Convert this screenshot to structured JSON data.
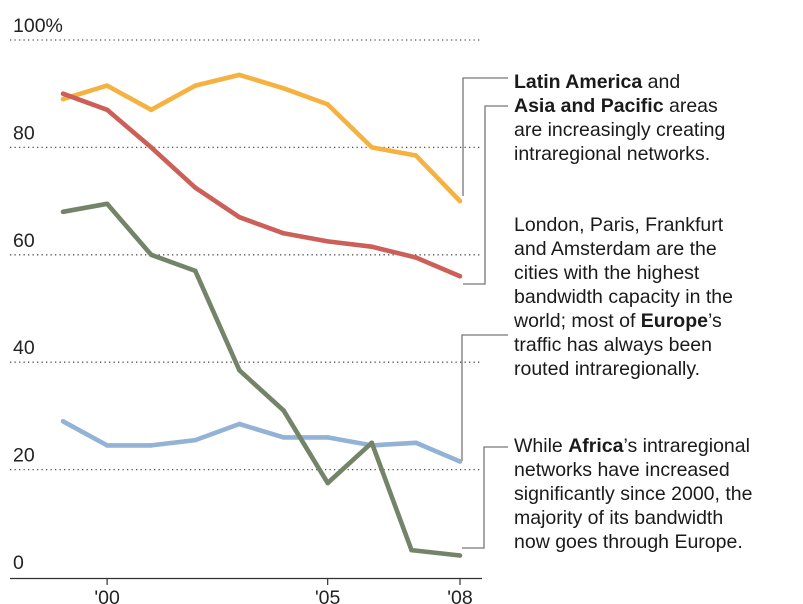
{
  "chart_data": {
    "type": "line",
    "x": [
      1999,
      2000,
      2001,
      2002,
      2003,
      2004,
      2005,
      2006,
      2007,
      2008
    ],
    "xticks": [
      {
        "x": 2000,
        "label": "'00"
      },
      {
        "x": 2005,
        "label": "'05"
      },
      {
        "x": 2008,
        "label": "'08"
      }
    ],
    "ylim": [
      0,
      100
    ],
    "yticks": [
      {
        "y": 100,
        "label": "100%"
      },
      {
        "y": 80,
        "label": "80"
      },
      {
        "y": 60,
        "label": "60"
      },
      {
        "y": 40,
        "label": "40"
      },
      {
        "y": 20,
        "label": "20"
      },
      {
        "y": 0,
        "label": "0"
      }
    ],
    "grid": true,
    "series": [
      {
        "name": "Latin America",
        "color": "#f5b240",
        "x": [
          1999,
          2000,
          2001,
          2002,
          2003,
          2004,
          2005,
          2006,
          2007,
          2008
        ],
        "values": [
          89,
          91.5,
          87,
          91.5,
          93.5,
          91,
          88,
          80,
          78.5,
          70
        ]
      },
      {
        "name": "Asia and Pacific",
        "color": "#cc6058",
        "x": [
          1999,
          2000,
          2001,
          2002,
          2003,
          2004,
          2005,
          2006,
          2007,
          2008
        ],
        "values": [
          90,
          87,
          80,
          72.5,
          67,
          64,
          62.5,
          61.5,
          59.5,
          56
        ]
      },
      {
        "name": "Europe",
        "color": "#93b3d6",
        "x": [
          1999,
          2000,
          2001,
          2002,
          2003,
          2004,
          2005,
          2006,
          2007,
          2008
        ],
        "values": [
          29,
          24.5,
          24.5,
          25.5,
          28.5,
          26,
          26,
          24.5,
          25,
          21.5
        ]
      },
      {
        "name": "Africa",
        "color": "#748468",
        "x": [
          1999,
          2000,
          2001,
          2002,
          2003,
          2004,
          2005,
          2006,
          2006.9,
          2008
        ],
        "values": [
          68,
          69.5,
          60,
          57,
          38.5,
          31,
          17.5,
          25,
          5,
          4
        ]
      }
    ]
  },
  "annotations": [
    {
      "id": "annot-1",
      "series": "Latin America",
      "series2": "Asia and Pacific",
      "parts": [
        {
          "b": "Latin America"
        },
        {
          "t": " and "
        },
        {
          "br": true
        },
        {
          "b": "Asia and Pacific"
        },
        {
          "t": " areas"
        },
        {
          "br": true
        },
        {
          "t": "are increasingly creating"
        },
        {
          "br": true
        },
        {
          "t": "intraregional networks."
        }
      ]
    },
    {
      "id": "annot-2",
      "series": "Europe",
      "parts": [
        {
          "t": "London, Paris, Frankfurt"
        },
        {
          "br": true
        },
        {
          "t": "and Amsterdam are the"
        },
        {
          "br": true
        },
        {
          "t": "cities with the highest"
        },
        {
          "br": true
        },
        {
          "t": "bandwidth capacity in the"
        },
        {
          "br": true
        },
        {
          "t": "world; most of "
        },
        {
          "b": "Europe"
        },
        {
          "t": "’s"
        },
        {
          "br": true
        },
        {
          "t": "traffic has always been"
        },
        {
          "br": true
        },
        {
          "t": "routed intraregionally."
        }
      ]
    },
    {
      "id": "annot-3",
      "series": "Africa",
      "parts": [
        {
          "t": "While "
        },
        {
          "b": "Africa"
        },
        {
          "t": "’s intraregional"
        },
        {
          "br": true
        },
        {
          "t": "networks have increased"
        },
        {
          "br": true
        },
        {
          "t": "significantly since 2000, the"
        },
        {
          "br": true
        },
        {
          "t": "majority of its bandwidth"
        },
        {
          "br": true
        },
        {
          "t": "now goes through Europe."
        }
      ]
    }
  ]
}
